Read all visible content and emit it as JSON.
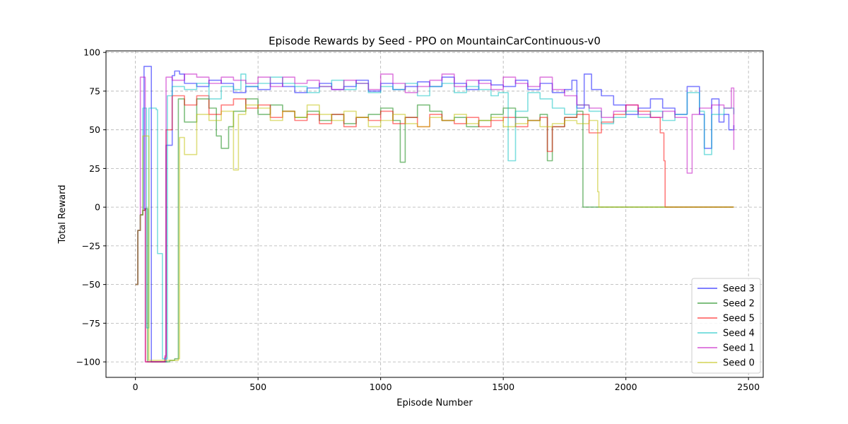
{
  "chart_data": {
    "type": "line",
    "title": "Episode Rewards by Seed - PPO on MountainCarContinuous-v0",
    "xlabel": "Episode Number",
    "ylabel": "Total Reward",
    "xlim": [
      -120,
      2560
    ],
    "ylim": [
      -110,
      101
    ],
    "xticks": [
      0,
      500,
      1000,
      1500,
      2000,
      2500
    ],
    "yticks": [
      -100,
      -75,
      -50,
      -25,
      0,
      25,
      50,
      75,
      100
    ],
    "grid": true,
    "legend_position": "bottom-right",
    "series": [
      {
        "name": "Seed 3",
        "color": "#0000ff",
        "points": [
          [
            0,
            -50
          ],
          [
            10,
            -15
          ],
          [
            20,
            -5
          ],
          [
            30,
            -2
          ],
          [
            40,
            -1
          ],
          [
            35,
            91
          ],
          [
            60,
            91
          ],
          [
            65,
            -100
          ],
          [
            120,
            -100
          ],
          [
            125,
            40
          ],
          [
            150,
            85
          ],
          [
            160,
            88
          ],
          [
            180,
            86
          ],
          [
            200,
            80
          ],
          [
            250,
            78
          ],
          [
            300,
            82
          ],
          [
            350,
            80
          ],
          [
            400,
            74
          ],
          [
            450,
            78
          ],
          [
            500,
            76
          ],
          [
            550,
            80
          ],
          [
            600,
            78
          ],
          [
            650,
            74
          ],
          [
            700,
            77
          ],
          [
            750,
            80
          ],
          [
            800,
            76
          ],
          [
            850,
            78
          ],
          [
            900,
            82
          ],
          [
            950,
            75
          ],
          [
            1000,
            80
          ],
          [
            1050,
            76
          ],
          [
            1100,
            78
          ],
          [
            1150,
            81
          ],
          [
            1200,
            78
          ],
          [
            1250,
            84
          ],
          [
            1300,
            80
          ],
          [
            1350,
            76
          ],
          [
            1400,
            82
          ],
          [
            1450,
            79
          ],
          [
            1500,
            78
          ],
          [
            1550,
            82
          ],
          [
            1600,
            76
          ],
          [
            1650,
            80
          ],
          [
            1700,
            74
          ],
          [
            1750,
            76
          ],
          [
            1780,
            82
          ],
          [
            1800,
            64
          ],
          [
            1830,
            86
          ],
          [
            1860,
            76
          ],
          [
            1900,
            72
          ],
          [
            1950,
            66
          ],
          [
            2000,
            60
          ],
          [
            2050,
            64
          ],
          [
            2100,
            70
          ],
          [
            2150,
            64
          ],
          [
            2200,
            60
          ],
          [
            2250,
            78
          ],
          [
            2300,
            60
          ],
          [
            2320,
            38
          ],
          [
            2350,
            70
          ],
          [
            2380,
            55
          ],
          [
            2400,
            60
          ],
          [
            2420,
            50
          ],
          [
            2440,
            53
          ]
        ]
      },
      {
        "name": "Seed 2",
        "color": "#008000",
        "points": [
          [
            0,
            -50
          ],
          [
            10,
            -15
          ],
          [
            20,
            -5
          ],
          [
            30,
            -2
          ],
          [
            40,
            -1
          ],
          [
            45,
            -1
          ],
          [
            50,
            -100
          ],
          [
            140,
            -99
          ],
          [
            160,
            -98
          ],
          [
            175,
            70
          ],
          [
            200,
            55
          ],
          [
            250,
            70
          ],
          [
            300,
            64
          ],
          [
            330,
            46
          ],
          [
            350,
            38
          ],
          [
            380,
            52
          ],
          [
            400,
            62
          ],
          [
            450,
            70
          ],
          [
            500,
            60
          ],
          [
            550,
            66
          ],
          [
            600,
            62
          ],
          [
            650,
            58
          ],
          [
            700,
            62
          ],
          [
            750,
            56
          ],
          [
            800,
            60
          ],
          [
            850,
            54
          ],
          [
            900,
            58
          ],
          [
            950,
            60
          ],
          [
            1000,
            64
          ],
          [
            1050,
            56
          ],
          [
            1080,
            29
          ],
          [
            1100,
            58
          ],
          [
            1150,
            66
          ],
          [
            1200,
            62
          ],
          [
            1250,
            56
          ],
          [
            1300,
            58
          ],
          [
            1350,
            52
          ],
          [
            1400,
            56
          ],
          [
            1450,
            60
          ],
          [
            1500,
            64
          ],
          [
            1550,
            58
          ],
          [
            1600,
            56
          ],
          [
            1650,
            60
          ],
          [
            1680,
            30
          ],
          [
            1700,
            52
          ],
          [
            1750,
            58
          ],
          [
            1800,
            62
          ],
          [
            1825,
            0
          ],
          [
            2440,
            0
          ]
        ]
      },
      {
        "name": "Seed 5",
        "color": "#ff0000",
        "points": [
          [
            0,
            -50
          ],
          [
            10,
            -15
          ],
          [
            20,
            -5
          ],
          [
            30,
            -2
          ],
          [
            40,
            -1
          ],
          [
            42,
            -100
          ],
          [
            120,
            -97
          ],
          [
            125,
            50
          ],
          [
            150,
            72
          ],
          [
            200,
            66
          ],
          [
            250,
            72
          ],
          [
            300,
            60
          ],
          [
            350,
            66
          ],
          [
            400,
            70
          ],
          [
            450,
            64
          ],
          [
            500,
            66
          ],
          [
            550,
            58
          ],
          [
            600,
            62
          ],
          [
            650,
            56
          ],
          [
            700,
            60
          ],
          [
            750,
            54
          ],
          [
            800,
            60
          ],
          [
            850,
            52
          ],
          [
            900,
            58
          ],
          [
            950,
            56
          ],
          [
            1000,
            62
          ],
          [
            1050,
            54
          ],
          [
            1100,
            58
          ],
          [
            1150,
            52
          ],
          [
            1200,
            60
          ],
          [
            1250,
            56
          ],
          [
            1300,
            54
          ],
          [
            1350,
            58
          ],
          [
            1400,
            52
          ],
          [
            1450,
            56
          ],
          [
            1500,
            58
          ],
          [
            1550,
            52
          ],
          [
            1600,
            56
          ],
          [
            1650,
            58
          ],
          [
            1680,
            36
          ],
          [
            1700,
            52
          ],
          [
            1750,
            58
          ],
          [
            1800,
            60
          ],
          [
            1850,
            48
          ],
          [
            1900,
            55
          ],
          [
            1950,
            60
          ],
          [
            2000,
            66
          ],
          [
            2050,
            62
          ],
          [
            2100,
            58
          ],
          [
            2140,
            48
          ],
          [
            2155,
            30
          ],
          [
            2160,
            0
          ],
          [
            2440,
            0
          ]
        ]
      },
      {
        "name": "Seed 4",
        "color": "#00bfbf",
        "points": [
          [
            0,
            -50
          ],
          [
            10,
            -15
          ],
          [
            20,
            -5
          ],
          [
            30,
            64
          ],
          [
            45,
            -78
          ],
          [
            55,
            64
          ],
          [
            85,
            63
          ],
          [
            90,
            -30
          ],
          [
            110,
            -98
          ],
          [
            130,
            72
          ],
          [
            150,
            78
          ],
          [
            200,
            76
          ],
          [
            250,
            80
          ],
          [
            300,
            70
          ],
          [
            350,
            78
          ],
          [
            400,
            76
          ],
          [
            430,
            86
          ],
          [
            450,
            78
          ],
          [
            500,
            80
          ],
          [
            550,
            84
          ],
          [
            600,
            80
          ],
          [
            650,
            78
          ],
          [
            700,
            74
          ],
          [
            750,
            78
          ],
          [
            800,
            82
          ],
          [
            850,
            76
          ],
          [
            900,
            80
          ],
          [
            950,
            74
          ],
          [
            1000,
            78
          ],
          [
            1050,
            76
          ],
          [
            1100,
            80
          ],
          [
            1150,
            72
          ],
          [
            1200,
            78
          ],
          [
            1250,
            80
          ],
          [
            1300,
            74
          ],
          [
            1350,
            78
          ],
          [
            1400,
            76
          ],
          [
            1450,
            72
          ],
          [
            1480,
            74
          ],
          [
            1520,
            30
          ],
          [
            1550,
            62
          ],
          [
            1600,
            74
          ],
          [
            1650,
            70
          ],
          [
            1700,
            64
          ],
          [
            1750,
            60
          ],
          [
            1800,
            66
          ],
          [
            1850,
            62
          ],
          [
            1900,
            54
          ],
          [
            1950,
            58
          ],
          [
            2000,
            62
          ],
          [
            2050,
            58
          ],
          [
            2100,
            62
          ],
          [
            2150,
            56
          ],
          [
            2200,
            60
          ],
          [
            2250,
            74
          ],
          [
            2300,
            62
          ],
          [
            2320,
            34
          ],
          [
            2350,
            60
          ],
          [
            2400,
            64
          ],
          [
            2440,
            60
          ]
        ]
      },
      {
        "name": "Seed 1",
        "color": "#bf00bf",
        "points": [
          [
            0,
            -50
          ],
          [
            10,
            -15
          ],
          [
            20,
            84
          ],
          [
            35,
            84
          ],
          [
            40,
            -100
          ],
          [
            120,
            -96
          ],
          [
            125,
            84
          ],
          [
            150,
            82
          ],
          [
            200,
            86
          ],
          [
            250,
            84
          ],
          [
            300,
            80
          ],
          [
            350,
            84
          ],
          [
            400,
            82
          ],
          [
            450,
            80
          ],
          [
            500,
            84
          ],
          [
            550,
            78
          ],
          [
            600,
            84
          ],
          [
            650,
            80
          ],
          [
            700,
            82
          ],
          [
            750,
            78
          ],
          [
            800,
            76
          ],
          [
            850,
            82
          ],
          [
            900,
            80
          ],
          [
            950,
            76
          ],
          [
            1000,
            86
          ],
          [
            1050,
            80
          ],
          [
            1100,
            74
          ],
          [
            1150,
            78
          ],
          [
            1200,
            82
          ],
          [
            1250,
            86
          ],
          [
            1300,
            78
          ],
          [
            1350,
            82
          ],
          [
            1400,
            80
          ],
          [
            1450,
            76
          ],
          [
            1500,
            84
          ],
          [
            1550,
            80
          ],
          [
            1600,
            78
          ],
          [
            1650,
            84
          ],
          [
            1700,
            76
          ],
          [
            1750,
            72
          ],
          [
            1800,
            66
          ],
          [
            1850,
            64
          ],
          [
            1900,
            58
          ],
          [
            1950,
            62
          ],
          [
            2000,
            66
          ],
          [
            2050,
            60
          ],
          [
            2100,
            58
          ],
          [
            2150,
            62
          ],
          [
            2200,
            58
          ],
          [
            2250,
            22
          ],
          [
            2270,
            60
          ],
          [
            2300,
            64
          ],
          [
            2350,
            66
          ],
          [
            2400,
            64
          ],
          [
            2430,
            77
          ],
          [
            2440,
            37
          ]
        ]
      },
      {
        "name": "Seed 0",
        "color": "#bfbf00",
        "points": [
          [
            0,
            -50
          ],
          [
            10,
            -15
          ],
          [
            20,
            -5
          ],
          [
            30,
            46
          ],
          [
            50,
            46
          ],
          [
            55,
            -99
          ],
          [
            175,
            -98
          ],
          [
            180,
            45
          ],
          [
            200,
            34
          ],
          [
            250,
            60
          ],
          [
            300,
            56
          ],
          [
            350,
            62
          ],
          [
            400,
            24
          ],
          [
            420,
            60
          ],
          [
            450,
            66
          ],
          [
            500,
            64
          ],
          [
            550,
            56
          ],
          [
            600,
            62
          ],
          [
            650,
            58
          ],
          [
            700,
            66
          ],
          [
            750,
            60
          ],
          [
            800,
            56
          ],
          [
            850,
            62
          ],
          [
            900,
            58
          ],
          [
            950,
            52
          ],
          [
            1000,
            56
          ],
          [
            1050,
            60
          ],
          [
            1100,
            54
          ],
          [
            1150,
            52
          ],
          [
            1200,
            58
          ],
          [
            1250,
            56
          ],
          [
            1300,
            60
          ],
          [
            1350,
            54
          ],
          [
            1400,
            56
          ],
          [
            1450,
            58
          ],
          [
            1500,
            52
          ],
          [
            1550,
            54
          ],
          [
            1600,
            56
          ],
          [
            1650,
            52
          ],
          [
            1700,
            54
          ],
          [
            1750,
            56
          ],
          [
            1800,
            54
          ],
          [
            1850,
            56
          ],
          [
            1885,
            10
          ],
          [
            1890,
            0
          ],
          [
            2440,
            0
          ]
        ]
      }
    ]
  }
}
